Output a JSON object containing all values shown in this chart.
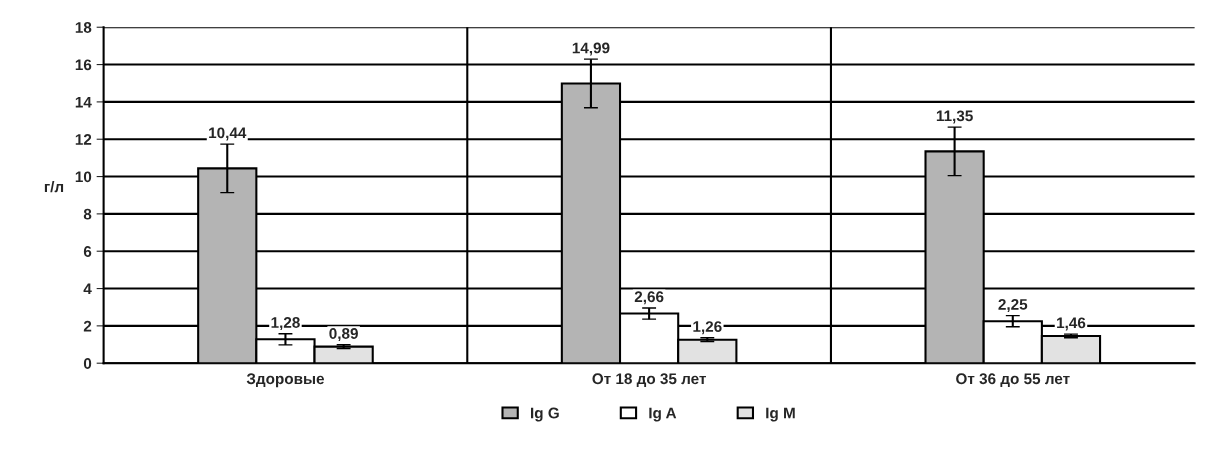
{
  "chart_data": {
    "type": "bar",
    "ylabel": "г/л",
    "categories": [
      "Здоровые",
      "От 18 до 35 лет",
      "От 36 до 55 лет"
    ],
    "series": [
      {
        "name": "Ig G",
        "color": "#b4b4b4",
        "values": [
          10.44,
          14.99,
          11.35
        ],
        "errors": [
          1.3,
          1.3,
          1.3
        ],
        "value_labels": [
          "10,44",
          "14,99",
          "11,35"
        ]
      },
      {
        "name": "Ig A",
        "color": "#ffffff",
        "values": [
          1.28,
          2.66,
          2.25
        ],
        "errors": [
          0.3,
          0.3,
          0.3
        ],
        "value_labels": [
          "1,28",
          "2,66",
          "2,25"
        ]
      },
      {
        "name": "Ig M",
        "color": "#e2e2e2",
        "values": [
          0.89,
          1.26,
          1.46
        ],
        "errors": [
          0.1,
          0.1,
          0.1
        ],
        "value_labels": [
          "0,89",
          "1,26",
          "1,46"
        ]
      }
    ],
    "ylim": [
      0,
      18
    ],
    "yticks": [
      0,
      2,
      4,
      6,
      8,
      10,
      12,
      14,
      16,
      18
    ],
    "grid": true,
    "legend": "bottom"
  }
}
